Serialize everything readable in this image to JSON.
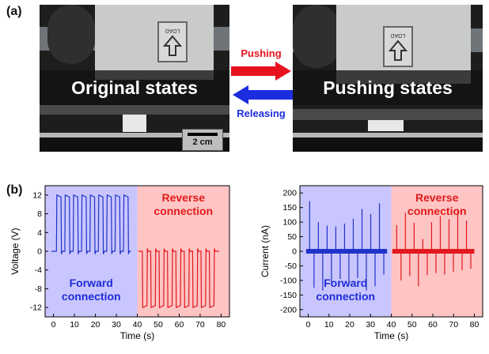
{
  "panels": {
    "a_label": "(a)",
    "b_label": "(b)"
  },
  "photos": {
    "left_caption": "Original states",
    "right_caption": "Pushing states",
    "scale_bar": "2 cm",
    "load_sign_text": "LOAD"
  },
  "arrows": {
    "push_label": "Pushing",
    "release_label": "Releasing",
    "push_color": "#e8121f",
    "release_color": "#1c2de0"
  },
  "chart_data": [
    {
      "type": "line",
      "xlabel": "Time (s)",
      "ylabel": "Voltage (V)",
      "xlim": [
        -4,
        84
      ],
      "ylim": [
        -14,
        14
      ],
      "xticks": [
        0,
        10,
        20,
        30,
        40,
        50,
        60,
        70,
        80
      ],
      "yticks": [
        -12,
        -8,
        -4,
        0,
        4,
        8,
        12
      ],
      "regions": [
        {
          "label_lines": [
            "Forward",
            "connection"
          ],
          "x_range": [
            -4,
            40
          ],
          "fill": "#c9c6ff",
          "text_color": "#1e2bd6"
        },
        {
          "label_lines": [
            "Reverse",
            "connection"
          ],
          "x_range": [
            40,
            84
          ],
          "fill": "#ffc4c4",
          "text_color": "#e11b1b"
        }
      ],
      "series": [
        {
          "color": "#1f33c8",
          "baseline": 0,
          "pulse_amplitude": 12,
          "pulse_starts": [
            1.4,
            5.4,
            9.4,
            13.4,
            17.4,
            21.4,
            25.4,
            29.4,
            33.4
          ],
          "pulse_width": 2.2,
          "x_range": [
            -1,
            37
          ]
        },
        {
          "color": "#e0191d",
          "baseline": 0,
          "pulse_amplitude": -12,
          "pulse_starts": [
            42.4,
            46.4,
            50.4,
            54.4,
            58.4,
            62.4,
            66.4,
            70.4,
            74.4
          ],
          "pulse_width": 2.2,
          "x_range": [
            40.5,
            79
          ]
        }
      ]
    },
    {
      "type": "line",
      "xlabel": "Time (s)",
      "ylabel": "Current (nA)",
      "xlim": [
        -4,
        84
      ],
      "ylim": [
        -225,
        225
      ],
      "xticks": [
        0,
        10,
        20,
        30,
        40,
        50,
        60,
        70,
        80
      ],
      "yticks": [
        -200,
        -150,
        -100,
        -50,
        0,
        50,
        100,
        150,
        200
      ],
      "regions": [
        {
          "label_lines": [
            "Forward",
            "connection"
          ],
          "x_range": [
            -4,
            40
          ],
          "fill": "#c9c6ff",
          "text_color": "#1e2bd6"
        },
        {
          "label_lines": [
            "Reverse",
            "connection"
          ],
          "x_range": [
            40,
            84
          ],
          "fill": "#ffc4c4",
          "text_color": "#e11b1b"
        }
      ],
      "series": [
        {
          "color": "#1f33c8",
          "x_range": [
            -1,
            38
          ],
          "spikes": [
            {
              "x": 0.7,
              "y": 172
            },
            {
              "x": 2.8,
              "y": -125
            },
            {
              "x": 4.9,
              "y": 100
            },
            {
              "x": 7.0,
              "y": -135
            },
            {
              "x": 9.1,
              "y": 88
            },
            {
              "x": 11.2,
              "y": -118
            },
            {
              "x": 13.3,
              "y": 85
            },
            {
              "x": 15.4,
              "y": -95
            },
            {
              "x": 17.5,
              "y": 95
            },
            {
              "x": 19.6,
              "y": -110
            },
            {
              "x": 21.7,
              "y": 112
            },
            {
              "x": 23.8,
              "y": -92
            },
            {
              "x": 25.9,
              "y": 145
            },
            {
              "x": 28.0,
              "y": -135
            },
            {
              "x": 30.1,
              "y": 128
            },
            {
              "x": 32.2,
              "y": -120
            },
            {
              "x": 34.3,
              "y": 165
            },
            {
              "x": 36.4,
              "y": -80
            }
          ]
        },
        {
          "color": "#e0191d",
          "x_range": [
            40.5,
            80
          ],
          "spikes": [
            {
              "x": 42.6,
              "y": 90
            },
            {
              "x": 44.7,
              "y": -100
            },
            {
              "x": 46.8,
              "y": 132
            },
            {
              "x": 48.9,
              "y": -85
            },
            {
              "x": 51.0,
              "y": 98
            },
            {
              "x": 53.1,
              "y": -120
            },
            {
              "x": 55.2,
              "y": 42
            },
            {
              "x": 57.3,
              "y": -82
            },
            {
              "x": 59.4,
              "y": 100
            },
            {
              "x": 61.5,
              "y": -75
            },
            {
              "x": 63.6,
              "y": 120
            },
            {
              "x": 65.7,
              "y": -80
            },
            {
              "x": 67.8,
              "y": 110
            },
            {
              "x": 69.9,
              "y": -70
            },
            {
              "x": 72.0,
              "y": 145
            },
            {
              "x": 74.1,
              "y": -65
            },
            {
              "x": 76.2,
              "y": 105
            },
            {
              "x": 78.3,
              "y": -60
            }
          ]
        }
      ]
    }
  ]
}
